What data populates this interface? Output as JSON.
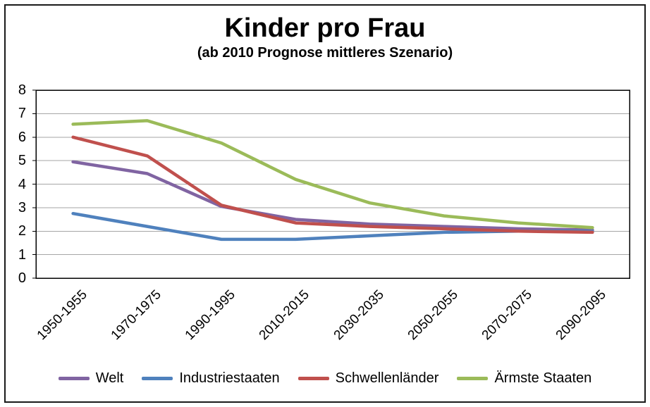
{
  "chart_data": {
    "type": "line",
    "title": "Kinder pro Frau",
    "subtitle": "(ab 2010 Prognose mittleres Szenario)",
    "categories": [
      "1950-1955",
      "1970-1975",
      "1990-1995",
      "2010-2015",
      "2030-2035",
      "2050-2055",
      "2070-2075",
      "2090-2095"
    ],
    "series": [
      {
        "name": "Welt",
        "color": "#8064A2",
        "values": [
          4.95,
          4.45,
          3.05,
          2.5,
          2.3,
          2.2,
          2.1,
          2.05
        ]
      },
      {
        "name": "Industriestaaten",
        "color": "#4F81BD",
        "values": [
          2.75,
          2.2,
          1.65,
          1.65,
          1.8,
          1.95,
          2.0,
          2.0
        ]
      },
      {
        "name": "Schwellenländer",
        "color": "#C0504D",
        "values": [
          6.0,
          5.2,
          3.1,
          2.35,
          2.2,
          2.1,
          2.0,
          1.95
        ]
      },
      {
        "name": "Ärmste Staaten",
        "color": "#9BBB59",
        "values": [
          6.55,
          6.7,
          5.75,
          4.2,
          3.2,
          2.65,
          2.35,
          2.15
        ]
      }
    ],
    "ylim": [
      0,
      8
    ],
    "yticks": [
      0,
      1,
      2,
      3,
      4,
      5,
      6,
      7,
      8
    ],
    "grid": true,
    "legend_position": "bottom",
    "colors": {
      "gridline": "#A6A6A6",
      "plot_border": "#000000",
      "outer_border": "#1A1A1A",
      "background": "#FFFFFF"
    }
  }
}
